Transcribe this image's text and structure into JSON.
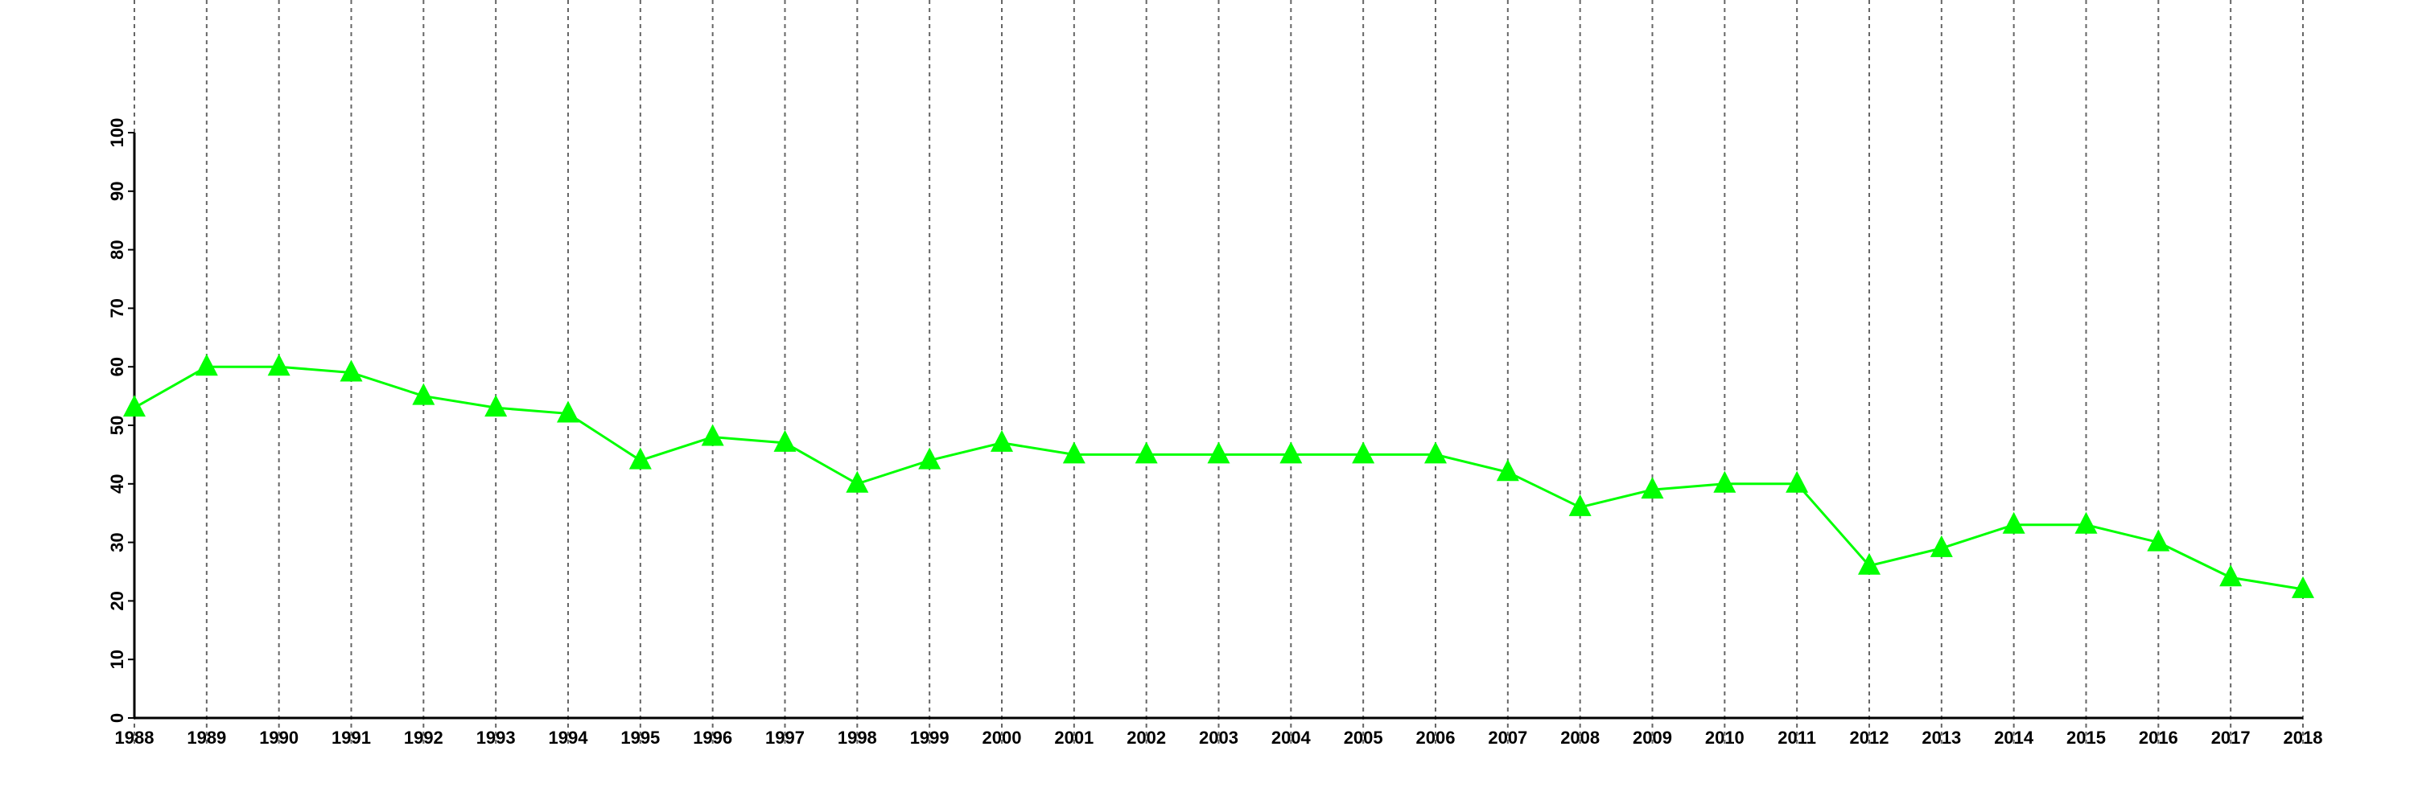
{
  "chart_data": {
    "type": "line",
    "title": "",
    "xlabel": "",
    "ylabel": "",
    "x": [
      1988,
      1989,
      1990,
      1991,
      1992,
      1993,
      1994,
      1995,
      1996,
      1997,
      1998,
      1999,
      2000,
      2001,
      2002,
      2003,
      2004,
      2005,
      2006,
      2007,
      2008,
      2009,
      2010,
      2011,
      2012,
      2013,
      2014,
      2015,
      2016,
      2017,
      2018
    ],
    "series": [
      {
        "values": [
          53,
          60,
          60,
          59,
          55,
          53,
          52,
          44,
          48,
          47,
          40,
          44,
          47,
          45,
          45,
          45,
          45,
          45,
          45,
          42,
          36,
          39,
          40,
          40,
          26,
          29,
          33,
          33,
          30,
          24,
          22
        ],
        "color": "#00ff00",
        "marker": "triangle"
      }
    ],
    "xlim": [
      1988,
      2018
    ],
    "ylim": [
      0,
      100
    ],
    "yticks": [
      0,
      10,
      20,
      30,
      40,
      50,
      60,
      70,
      80,
      90,
      100
    ],
    "xticks": [
      "1988",
      "1989",
      "1990",
      "1991",
      "1992",
      "1993",
      "1994",
      "1995",
      "1996",
      "1997",
      "1998",
      "1999",
      "2000",
      "2001",
      "2002",
      "2003",
      "2004",
      "2005",
      "2006",
      "2007",
      "2008",
      "2009",
      "2010",
      "2011",
      "2012",
      "2013",
      "2014",
      "2015",
      "2016",
      "2017",
      "2018"
    ],
    "grid": "vertical dashed",
    "legend": "none"
  }
}
